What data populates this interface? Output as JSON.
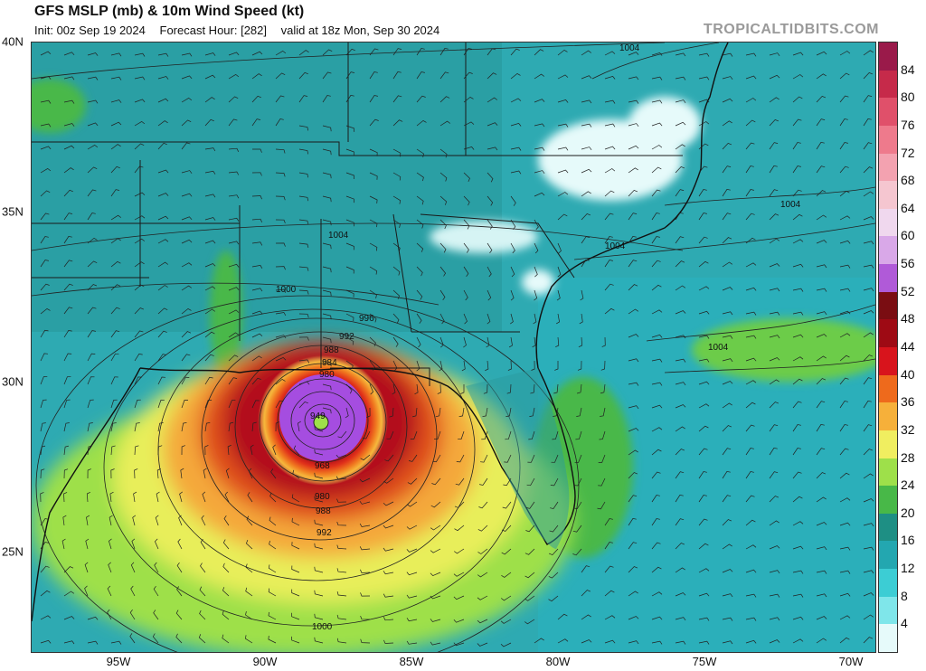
{
  "header": {
    "title": "GFS MSLP (mb) & 10m Wind Speed (kt)",
    "init": "Init: 00z Sep 19 2024",
    "forecast_hour": "Forecast Hour: [282]",
    "valid": "valid at 18z Mon, Sep 30 2024",
    "brand": "TROPICALTIDBITS.COM"
  },
  "axes": {
    "lat_labels": [
      "40N",
      "35N",
      "30N",
      "25N"
    ],
    "lon_labels": [
      "95W",
      "90W",
      "85W",
      "80W",
      "75W",
      "70W"
    ]
  },
  "colorbar": {
    "labels": [
      "84",
      "80",
      "76",
      "72",
      "68",
      "64",
      "60",
      "56",
      "52",
      "48",
      "44",
      "40",
      "36",
      "32",
      "28",
      "24",
      "20",
      "16",
      "12",
      "8",
      "4"
    ],
    "colors": [
      "#9a1a4a",
      "#c62a4a",
      "#e0506a",
      "#ee7a8c",
      "#f3a2b0",
      "#f5c6d0",
      "#f0d8ee",
      "#d9a8e8",
      "#b05ad8",
      "#7a0d12",
      "#9e0a14",
      "#d8141c",
      "#ee6a1c",
      "#f6b03a",
      "#f0ee60",
      "#9ee04a",
      "#48b848",
      "#1e8f84",
      "#23a7b0",
      "#3ccdd4",
      "#7fe6ea",
      "#e6fafa"
    ]
  },
  "isobar_labels": [
    "1004",
    "1004",
    "1004",
    "1004",
    "1000",
    "1004",
    "996",
    "992",
    "988",
    "984",
    "980",
    "949",
    "968",
    "980",
    "988",
    "992",
    "1000"
  ],
  "storm": {
    "center_pressure": "949"
  }
}
